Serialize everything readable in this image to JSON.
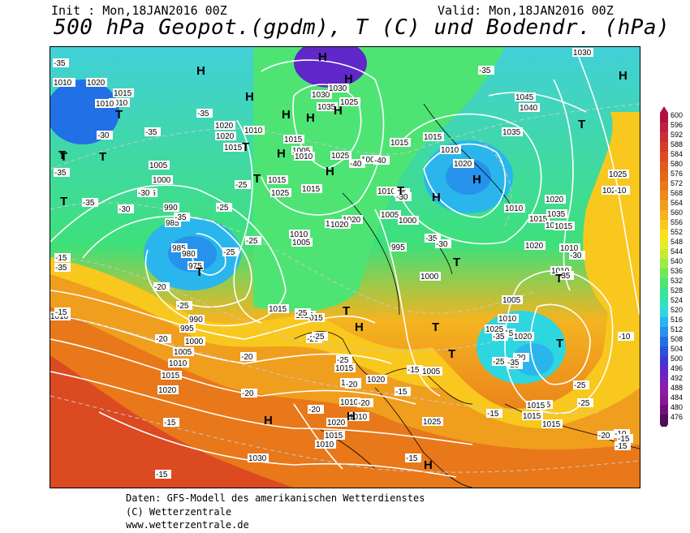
{
  "header": {
    "init": "Init : Mon,18JAN2016 00Z",
    "valid": "Valid: Mon,18JAN2016 00Z",
    "title": "500 hPa Geopot.(gpdm), T (C) und Bodendr. (hPa)"
  },
  "legend": {
    "values": [
      600,
      596,
      592,
      588,
      584,
      580,
      576,
      572,
      568,
      564,
      560,
      556,
      552,
      548,
      544,
      540,
      536,
      532,
      528,
      524,
      520,
      516,
      512,
      508,
      504,
      500,
      496,
      492,
      488,
      484,
      480,
      476
    ],
    "colors": [
      "#b0123b",
      "#c0203e",
      "#cc2d35",
      "#d63a2b",
      "#dc4a22",
      "#e05a1c",
      "#e4681a",
      "#e8781a",
      "#ec8a1c",
      "#f09e1e",
      "#f4b420",
      "#f8c81e",
      "#fce01c",
      "#e8ec28",
      "#c4ec34",
      "#9cec44",
      "#70e658",
      "#4ee474",
      "#38e496",
      "#30e2bc",
      "#2ed6e0",
      "#2ab6ec",
      "#2692ec",
      "#2270e6",
      "#2a50dc",
      "#4038d0",
      "#6028c8",
      "#7c20b8",
      "#901aa6",
      "#8a1892",
      "#6e1278",
      "#520c5a"
    ]
  },
  "pressure_labels": [
    "1025",
    "1020",
    "1015",
    "1010",
    "1010",
    "1005",
    "1000",
    "995",
    "990",
    "985",
    "985",
    "980",
    "975",
    "990",
    "995",
    "1000",
    "1005",
    "1010",
    "1015",
    "1020",
    "1025",
    "1030",
    "1035",
    "1025",
    "1020",
    "1020",
    "1015",
    "1010",
    "1015",
    "1010",
    "1005",
    "1010",
    "1005",
    "1015",
    "1005",
    "1010",
    "1015",
    "1020",
    "1025",
    "1020",
    "1015",
    "1010",
    "1020",
    "1015",
    "1010",
    "1005",
    "1000",
    "995",
    "1000",
    "1005",
    "1010",
    "1015",
    "1020",
    "1025",
    "1030",
    "1035",
    "1040",
    "1045",
    "1010",
    "1015",
    "1020",
    "1035",
    "1025",
    "1020",
    "1010",
    "1005",
    "1010",
    "1015",
    "1020",
    "1025",
    "1030",
    "1025",
    "1020",
    "1015",
    "1010",
    "1025",
    "1015",
    "1015",
    "1015",
    "1025",
    "1010",
    "1010",
    "1020",
    "1015",
    "1010",
    "1030",
    "1015",
    "1020",
    "1010",
    "015",
    "1010"
  ],
  "temperature_labels": [
    "-35",
    "-35",
    "-35",
    "-35",
    "-30",
    "-30",
    "-35",
    "-25",
    "-25",
    "-35",
    "-30",
    "-35",
    "-25",
    "-25",
    "-20",
    "-25",
    "-20",
    "-15",
    "-15",
    "-20",
    "-20",
    "-25",
    "-20",
    "-25",
    "-20",
    "-25",
    "-20",
    "-20",
    "-15",
    "-15",
    "-15",
    "-15",
    "-10",
    "-10",
    "-15",
    "-15",
    "-35",
    "-40",
    "-40",
    "-35",
    "-30",
    "-35",
    "-30",
    "-35",
    "-25",
    "-20",
    "-20",
    "-35",
    "-35",
    "-30",
    "-25",
    "-25",
    "-20",
    "-15",
    "-15",
    "-10"
  ],
  "pressure_centers": [
    "H",
    "H",
    "H",
    "H",
    "H",
    "H",
    "H",
    "H",
    "H",
    "T",
    "T",
    "T",
    "T",
    "T",
    "T",
    "T",
    "T",
    "T",
    "T",
    "T",
    "T",
    "T",
    "T",
    "H",
    "H",
    "H",
    "H",
    "H",
    "H",
    "H",
    "T",
    "T"
  ],
  "footer": {
    "line1": "Daten: GFS-Modell des amerikanischen Wetterdienstes",
    "line2": "(C) Wetterzentrale",
    "line3": "www.wetterzentrale.de"
  }
}
